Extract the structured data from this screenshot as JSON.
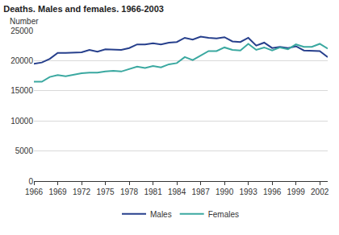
{
  "chart_data": {
    "type": "line",
    "title": "Deaths. Males and females. 1966-2003",
    "ylabel": "Number",
    "x": [
      1966,
      1967,
      1968,
      1969,
      1970,
      1971,
      1972,
      1973,
      1974,
      1975,
      1976,
      1977,
      1978,
      1979,
      1980,
      1981,
      1982,
      1983,
      1984,
      1985,
      1986,
      1987,
      1988,
      1989,
      1990,
      1991,
      1992,
      1993,
      1994,
      1995,
      1996,
      1997,
      1998,
      1999,
      2000,
      2001,
      2002,
      2003
    ],
    "series": [
      {
        "name": "Males",
        "color": "#263f8c",
        "values": [
          19500,
          19700,
          20300,
          21300,
          21300,
          21300,
          21400,
          21800,
          21500,
          21900,
          21900,
          21800,
          22100,
          22700,
          22700,
          22900,
          22700,
          23000,
          23100,
          23800,
          23500,
          24000,
          23800,
          23700,
          23900,
          23200,
          23100,
          23800,
          22500,
          23000,
          22100,
          22300,
          22100,
          22400,
          21700,
          21600,
          21600,
          20600
        ]
      },
      {
        "name": "Females",
        "color": "#3aa8a0",
        "values": [
          16500,
          16500,
          17300,
          17600,
          17400,
          17700,
          17900,
          18000,
          18000,
          18200,
          18300,
          18200,
          18600,
          19000,
          18800,
          19100,
          18900,
          19400,
          19600,
          20600,
          20100,
          20800,
          21600,
          21600,
          22200,
          21800,
          21700,
          22800,
          21800,
          22200,
          21700,
          22200,
          21900,
          22700,
          22300,
          22300,
          22800,
          22000
        ]
      }
    ],
    "xlim": [
      1966,
      2003
    ],
    "xticks": [
      1966,
      1969,
      1972,
      1975,
      1978,
      1981,
      1984,
      1987,
      1990,
      1993,
      1996,
      1999,
      2002
    ],
    "ylim": [
      0,
      25000
    ],
    "yticks": [
      0,
      5000,
      10000,
      15000,
      20000,
      25000
    ],
    "grid": true,
    "legend": "bottom"
  }
}
